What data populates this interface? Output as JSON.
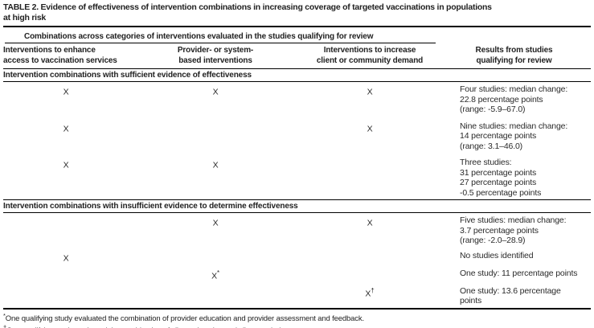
{
  "title": "TABLE 2. Evidence of effectiveness of intervention combinations in increasing coverage of targeted vaccinations in populations\nat high risk",
  "table": {
    "spanner": "Combinations across categories of interventions evaluated in the studies qualifying for review",
    "columns": {
      "access": "Interventions to enhance\naccess to vaccination services",
      "provider": "Provider- or system-\nbased interventions",
      "demand": "Interventions to increase\nclient or community demand",
      "results": "Results from studies\nqualifying for review"
    },
    "sections": [
      {
        "header": "Intervention combinations with sufficient evidence of effectiveness",
        "rows": [
          {
            "access": {
              "mark": "X",
              "sup": ""
            },
            "provider": {
              "mark": "X",
              "sup": ""
            },
            "demand": {
              "mark": "X",
              "sup": ""
            },
            "results": "Four studies: median change:\n22.8 percentage points\n(range: -5.9–67.0)"
          },
          {
            "access": {
              "mark": "X",
              "sup": ""
            },
            "provider": {
              "mark": "",
              "sup": ""
            },
            "demand": {
              "mark": "X",
              "sup": ""
            },
            "results": "Nine studies: median change:\n14 percentage points\n(range: 3.1–46.0)"
          },
          {
            "access": {
              "mark": "X",
              "sup": ""
            },
            "provider": {
              "mark": "X",
              "sup": ""
            },
            "demand": {
              "mark": "",
              "sup": ""
            },
            "results": "Three studies:\n31 percentage points\n27 percentage points\n-0.5 percentage points"
          }
        ]
      },
      {
        "header": "Intervention combinations with insufficient evidence to determine effectiveness",
        "rows": [
          {
            "access": {
              "mark": "",
              "sup": ""
            },
            "provider": {
              "mark": "X",
              "sup": ""
            },
            "demand": {
              "mark": "X",
              "sup": ""
            },
            "results": "Five studies: median change:\n3.7 percentage points\n(range: -2.0–28.9)"
          },
          {
            "access": {
              "mark": "X",
              "sup": ""
            },
            "provider": {
              "mark": "",
              "sup": ""
            },
            "demand": {
              "mark": "",
              "sup": ""
            },
            "results": "No studies identified"
          },
          {
            "access": {
              "mark": "",
              "sup": ""
            },
            "provider": {
              "mark": "X",
              "sup": "*"
            },
            "demand": {
              "mark": "",
              "sup": ""
            },
            "results": "One study: 11 percentage points"
          },
          {
            "access": {
              "mark": "",
              "sup": ""
            },
            "provider": {
              "mark": "",
              "sup": ""
            },
            "demand": {
              "mark": "X",
              "sup": "†"
            },
            "results": "One study: 13.6 percentage\npoints"
          }
        ]
      }
    ]
  },
  "footnotes": [
    {
      "symbol": "*",
      "text": "One qualifying study evaluated the combination of provider education and provider assessment and feedback."
    },
    {
      "symbol": "†",
      "text": "One qualifying study evaluated the combination of client education and client reminders."
    }
  ]
}
